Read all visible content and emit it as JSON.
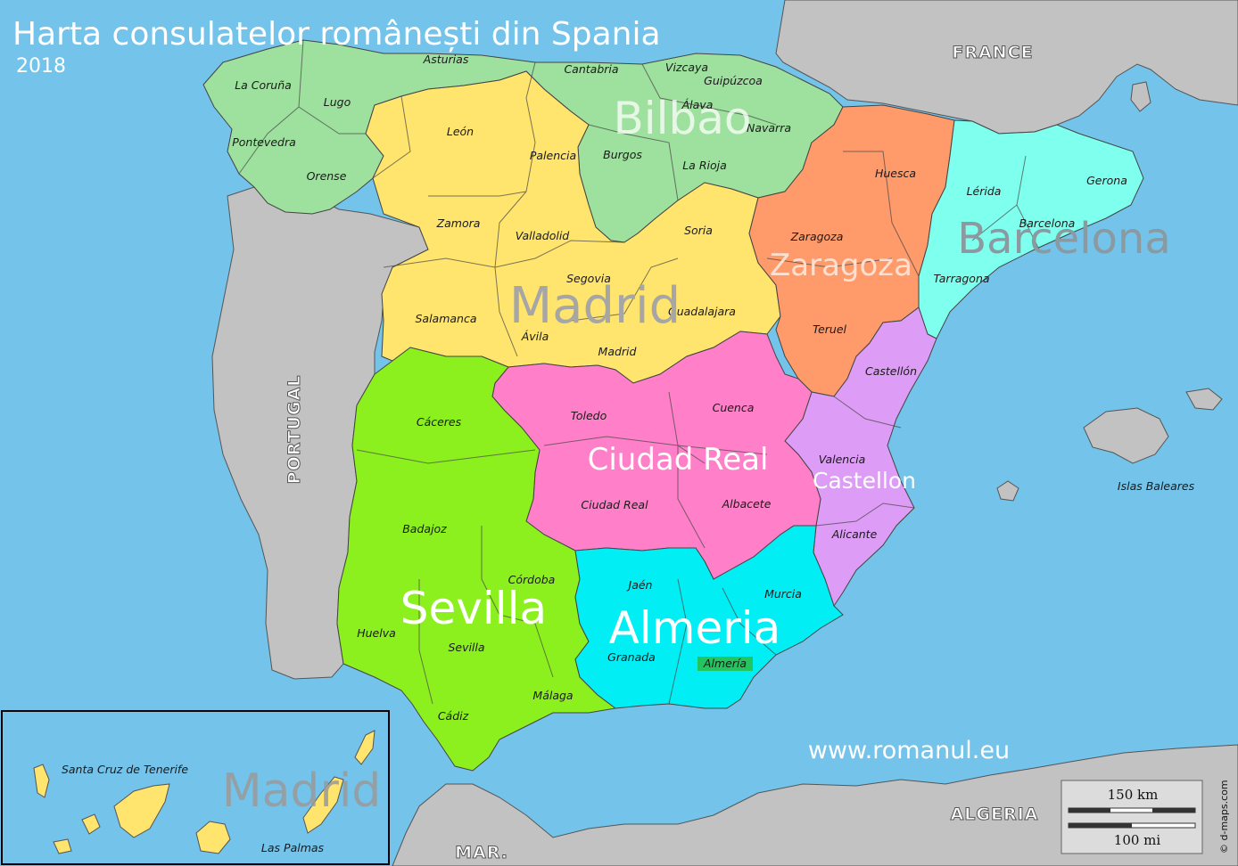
{
  "title": "Harta consulatelor românești din Spania",
  "year": "2018",
  "website": "www.romanul.eu",
  "credit": "© d-maps.com",
  "scale": {
    "km": "150 km",
    "mi": "100 mi"
  },
  "countries": {
    "france": "FRANCE",
    "portugal": "PORTUGAL",
    "algeria": "ALGERIA",
    "morocco": "MAR."
  },
  "consulates": {
    "bilbao": "Bilbao",
    "barcelona": "Barcelona",
    "zaragoza": "Zaragoza",
    "madrid": "Madrid",
    "ciudad_real": "Ciudad Real",
    "castellon": "Castellon",
    "sevilla": "Sevilla",
    "almeria": "Almeria",
    "madrid_canarias": "Madrid"
  },
  "provinces": {
    "la_coruna": "La Coruña",
    "lugo": "Lugo",
    "pontevedra": "Pontevedra",
    "orense": "Orense",
    "asturias": "Asturias",
    "cantabria": "Cantabria",
    "vizcaya": "Vizcaya",
    "guipuzcoa": "Guipúzcoa",
    "alava": "Álava",
    "navarra": "Navarra",
    "la_rioja": "La Rioja",
    "burgos": "Burgos",
    "leon": "León",
    "palencia": "Palencia",
    "zamora": "Zamora",
    "valladolid": "Valladolid",
    "soria": "Soria",
    "segovia": "Segovia",
    "salamanca": "Salamanca",
    "avila": "Ávila",
    "madrid": "Madrid",
    "guadalajara": "Guadalajara",
    "huesca": "Huesca",
    "zaragoza": "Zaragoza",
    "teruel": "Teruel",
    "lerida": "Lérida",
    "gerona": "Gerona",
    "barcelona": "Barcelona",
    "tarragona": "Tarragona",
    "castellon": "Castellón",
    "valencia": "Valencia",
    "alicante": "Alicante",
    "toledo": "Toledo",
    "cuenca": "Cuenca",
    "ciudad_real": "Ciudad Real",
    "albacete": "Albacete",
    "caceres": "Cáceres",
    "badajoz": "Badajoz",
    "cordoba": "Córdoba",
    "huelva": "Huelva",
    "sevilla": "Sevilla",
    "cadiz": "Cádiz",
    "malaga": "Málaga",
    "jaen": "Jaén",
    "granada": "Granada",
    "almeria": "Almería",
    "murcia": "Murcia",
    "islas_baleares": "Islas Baleares",
    "santa_cruz": "Santa Cruz de Tenerife",
    "las_palmas": "Las Palmas"
  },
  "colors": {
    "sea": "#73c3ea",
    "foreign_land": "#c2c2c2",
    "bilbao": "#9ee09e",
    "madrid": "#ffe46e",
    "zaragoza": "#ff9a6a",
    "barcelona": "#7fffee",
    "ciudad_real": "#ff80c8",
    "castellon": "#dd9cf5",
    "sevilla": "#8cf01e",
    "almeria": "#00eef4",
    "canarias": "#ffe46e",
    "almeria_label_bg": "#22c55e"
  }
}
